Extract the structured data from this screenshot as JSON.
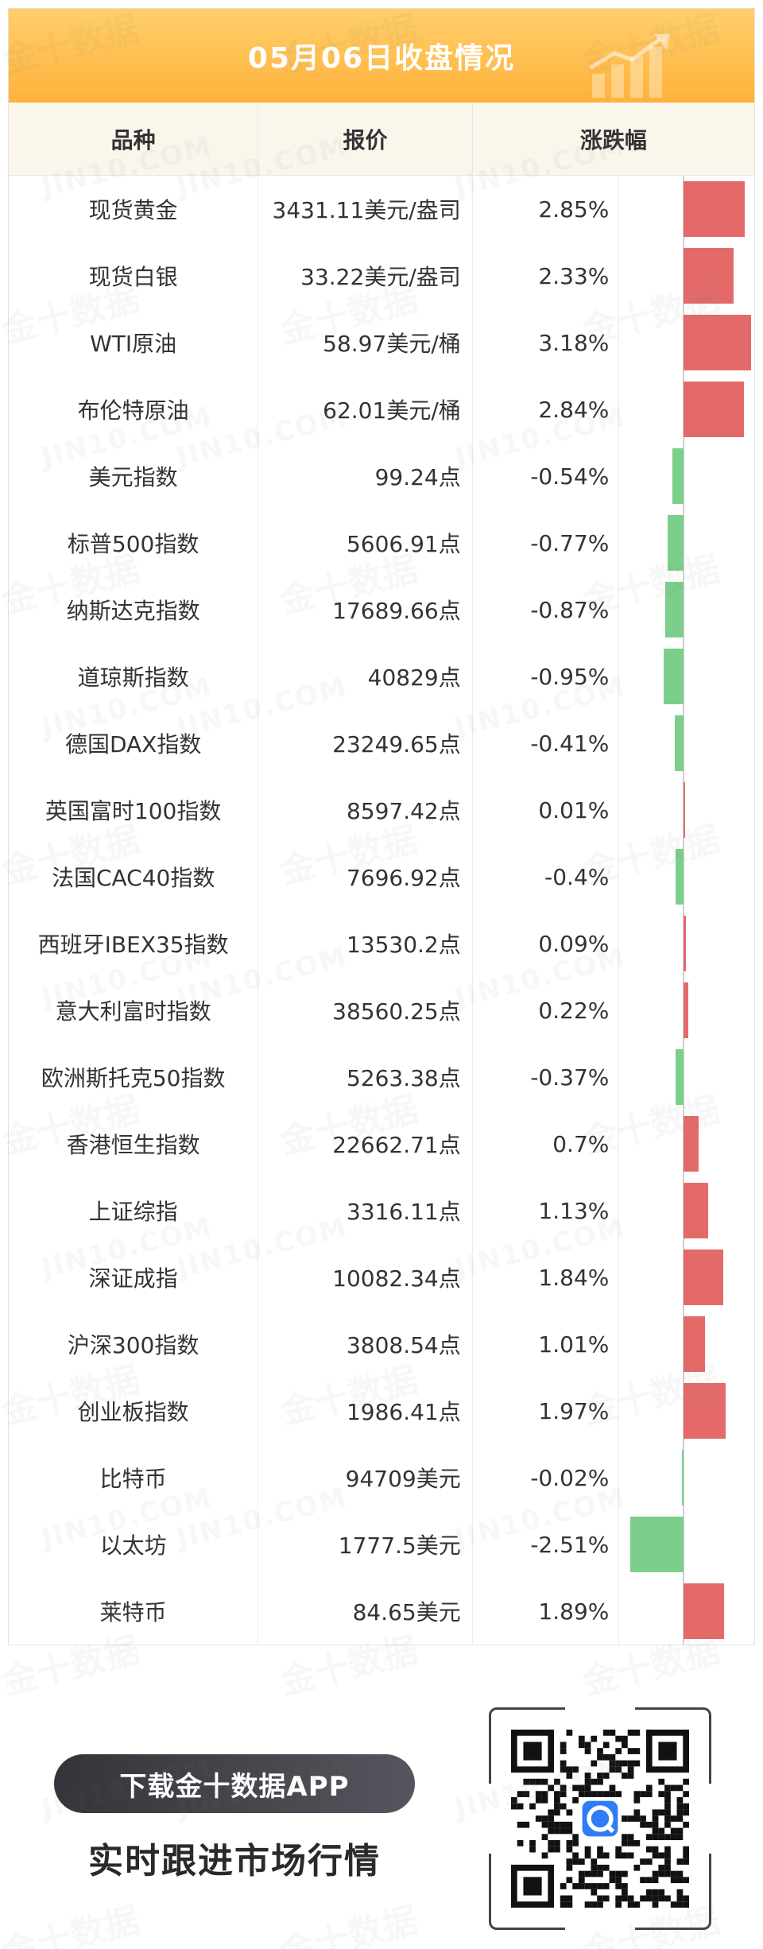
{
  "header": {
    "title": "05月06日收盘情况"
  },
  "columns": [
    "品种",
    "报价",
    "涨跌幅"
  ],
  "rows": [
    {
      "name": "现货黄金",
      "price": "3431.11美元/盎司",
      "change": "2.85%",
      "value": 2.85
    },
    {
      "name": "现货白银",
      "price": "33.22美元/盎司",
      "change": "2.33%",
      "value": 2.33
    },
    {
      "name": "WTI原油",
      "price": "58.97美元/桶",
      "change": "3.18%",
      "value": 3.18
    },
    {
      "name": "布伦特原油",
      "price": "62.01美元/桶",
      "change": "2.84%",
      "value": 2.84
    },
    {
      "name": "美元指数",
      "price": "99.24点",
      "change": "-0.54%",
      "value": -0.54
    },
    {
      "name": "标普500指数",
      "price": "5606.91点",
      "change": "-0.77%",
      "value": -0.77
    },
    {
      "name": "纳斯达克指数",
      "price": "17689.66点",
      "change": "-0.87%",
      "value": -0.87
    },
    {
      "name": "道琼斯指数",
      "price": "40829点",
      "change": "-0.95%",
      "value": -0.95
    },
    {
      "name": "德国DAX指数",
      "price": "23249.65点",
      "change": "-0.41%",
      "value": -0.41
    },
    {
      "name": "英国富时100指数",
      "price": "8597.42点",
      "change": "0.01%",
      "value": 0.01
    },
    {
      "name": "法国CAC40指数",
      "price": "7696.92点",
      "change": "-0.4%",
      "value": -0.4
    },
    {
      "name": "西班牙IBEX35指数",
      "price": "13530.2点",
      "change": "0.09%",
      "value": 0.09
    },
    {
      "name": "意大利富时指数",
      "price": "38560.25点",
      "change": "0.22%",
      "value": 0.22
    },
    {
      "name": "欧洲斯托克50指数",
      "price": "5263.38点",
      "change": "-0.37%",
      "value": -0.37
    },
    {
      "name": "香港恒生指数",
      "price": "22662.71点",
      "change": "0.7%",
      "value": 0.7
    },
    {
      "name": "上证综指",
      "price": "3316.11点",
      "change": "1.13%",
      "value": 1.13
    },
    {
      "name": "深证成指",
      "price": "10082.34点",
      "change": "1.84%",
      "value": 1.84
    },
    {
      "name": "沪深300指数",
      "price": "3808.54点",
      "change": "1.01%",
      "value": 1.01
    },
    {
      "name": "创业板指数",
      "price": "1986.41点",
      "change": "1.97%",
      "value": 1.97
    },
    {
      "name": "比特币",
      "price": "94709美元",
      "change": "-0.02%",
      "value": -0.02
    },
    {
      "name": "以太坊",
      "price": "1777.5美元",
      "change": "-2.51%",
      "value": -2.51
    },
    {
      "name": "莱特币",
      "price": "84.65美元",
      "change": "1.89%",
      "value": 1.89
    }
  ],
  "colors": {
    "up": "#e46a6a",
    "down": "#7ccf8a",
    "accent": "#ffb23c"
  },
  "footer": {
    "download_label": "下载金十数据APP",
    "slogan": "实时跟进市场行情"
  },
  "watermark": {
    "cn": "金十数据",
    "en": "JIN10.COM"
  }
}
